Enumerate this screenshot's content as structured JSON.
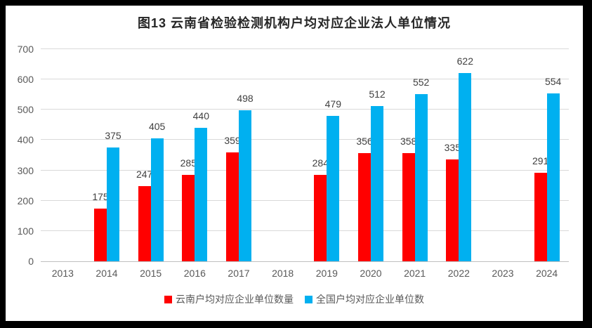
{
  "title": "图13  云南省检验检测机构户均对应企业法人单位情况",
  "chart_data": {
    "type": "bar",
    "title": "图13  云南省检验检测机构户均对应企业法人单位情况",
    "categories": [
      "2013",
      "2014",
      "2015",
      "2016",
      "2017",
      "2018",
      "2019",
      "2020",
      "2021",
      "2022",
      "2023",
      "2024"
    ],
    "series": [
      {
        "name": "云南户均对应企业单位数量",
        "key": "yunnan",
        "color": "#FF0000",
        "values": [
          null,
          175,
          247,
          285,
          359,
          null,
          284,
          356,
          358,
          335,
          null,
          291
        ]
      },
      {
        "name": "全国户均对应企业单位数",
        "key": "national",
        "color": "#00B0F0",
        "values": [
          null,
          375,
          405,
          440,
          498,
          null,
          479,
          512,
          552,
          622,
          null,
          554
        ]
      }
    ],
    "xlabel": "",
    "ylabel": "",
    "ylim": [
      0,
      700
    ],
    "yticks": [
      0,
      100,
      200,
      300,
      400,
      500,
      600,
      700
    ],
    "grid": true,
    "legend_position": "bottom",
    "data_labels": "outside-end"
  },
  "colors": {
    "series_yunnan": "#FF0000",
    "series_national": "#00B0F0",
    "gridline": "#D9D9D9",
    "axis_line": "#BFBFBF",
    "tick_label": "#595959",
    "data_label": "#404040",
    "title": "#262626",
    "frame": "#000000",
    "background": "#FFFFFF"
  }
}
